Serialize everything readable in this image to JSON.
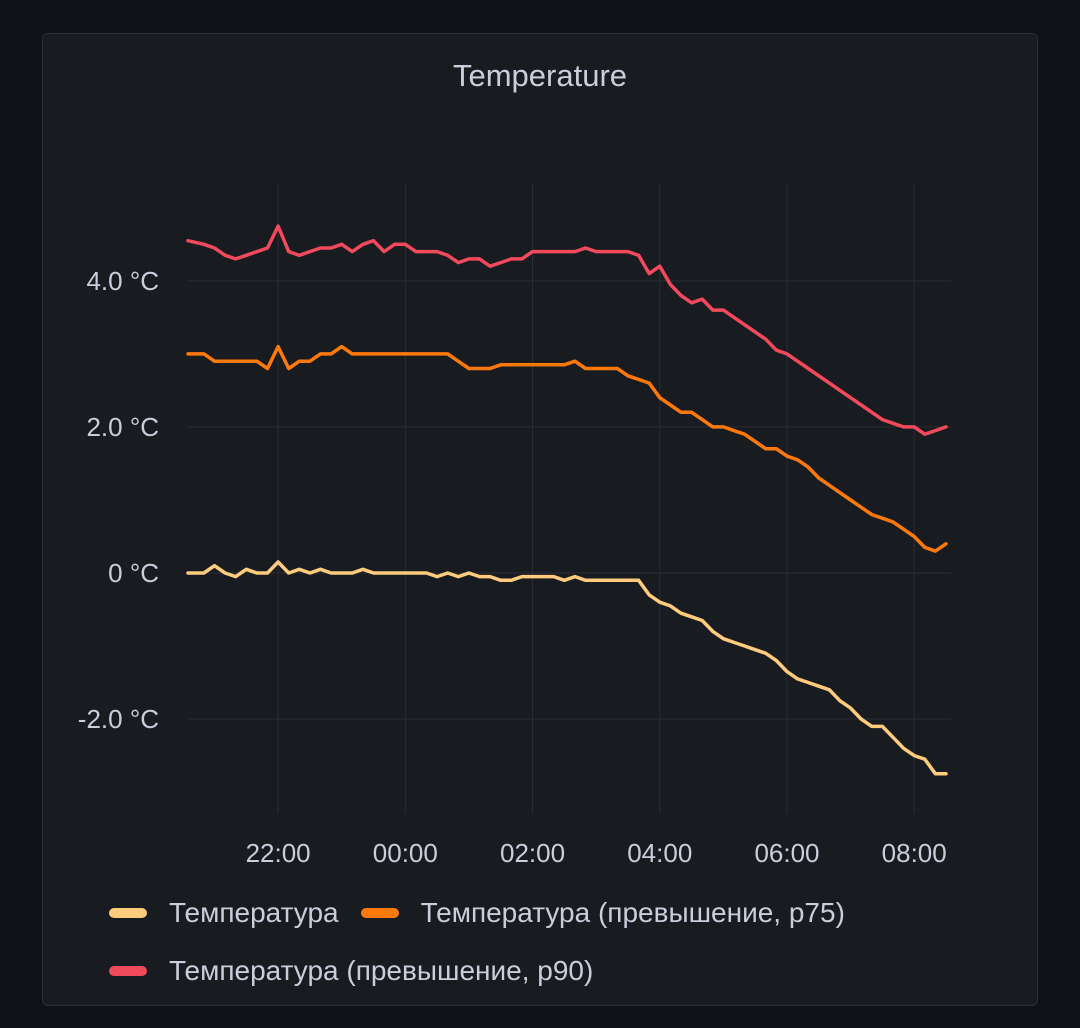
{
  "panel": {
    "title": "Temperature"
  },
  "chart_data": {
    "type": "line",
    "title": "Temperature",
    "xlabel": "",
    "ylabel": "",
    "x_unit": "time (hours, local)",
    "x_ticks": [
      "22:00",
      "00:00",
      "02:00",
      "04:00",
      "06:00",
      "08:00"
    ],
    "x_range": [
      "20:35",
      "08:30"
    ],
    "y_ticks": [
      "-2.0 °C",
      "0 °C",
      "2.0 °C",
      "4.0 °C"
    ],
    "y_tick_values": [
      -2,
      0,
      2,
      4
    ],
    "ylim": [
      -3.3,
      5.6
    ],
    "grid": true,
    "legend_position": "bottom-left",
    "x": [
      "20:35",
      "20:50",
      "21:00",
      "21:10",
      "21:20",
      "21:30",
      "21:40",
      "21:50",
      "22:00",
      "22:10",
      "22:20",
      "22:30",
      "22:40",
      "22:50",
      "23:00",
      "23:10",
      "23:20",
      "23:30",
      "23:40",
      "23:50",
      "00:00",
      "00:10",
      "00:20",
      "00:30",
      "00:40",
      "00:50",
      "01:00",
      "01:10",
      "01:20",
      "01:30",
      "01:40",
      "01:50",
      "02:00",
      "02:10",
      "02:20",
      "02:30",
      "02:40",
      "02:50",
      "03:00",
      "03:10",
      "03:20",
      "03:30",
      "03:40",
      "03:50",
      "04:00",
      "04:10",
      "04:20",
      "04:30",
      "04:40",
      "04:50",
      "05:00",
      "05:10",
      "05:20",
      "05:30",
      "05:40",
      "05:50",
      "06:00",
      "06:10",
      "06:20",
      "06:30",
      "06:40",
      "06:50",
      "07:00",
      "07:10",
      "07:20",
      "07:30",
      "07:40",
      "07:50",
      "08:00",
      "08:10",
      "08:20",
      "08:30"
    ],
    "series": [
      {
        "name": "Температура",
        "color": "#ffcb7d",
        "values": [
          0.0,
          0.0,
          0.1,
          0.0,
          -0.05,
          0.05,
          0.0,
          0.0,
          0.15,
          0.0,
          0.05,
          0.0,
          0.05,
          0.0,
          0.0,
          0.0,
          0.05,
          0.0,
          0.0,
          0.0,
          0.0,
          0.0,
          0.0,
          -0.05,
          0.0,
          -0.05,
          0.0,
          -0.05,
          -0.05,
          -0.1,
          -0.1,
          -0.05,
          -0.05,
          -0.05,
          -0.05,
          -0.1,
          -0.05,
          -0.1,
          -0.1,
          -0.1,
          -0.1,
          -0.1,
          -0.1,
          -0.3,
          -0.4,
          -0.45,
          -0.55,
          -0.6,
          -0.65,
          -0.8,
          -0.9,
          -0.95,
          -1.0,
          -1.05,
          -1.1,
          -1.2,
          -1.35,
          -1.45,
          -1.5,
          -1.55,
          -1.6,
          -1.75,
          -1.85,
          -2.0,
          -2.1,
          -2.1,
          -2.25,
          -2.4,
          -2.5,
          -2.55,
          -2.75,
          -2.75
        ]
      },
      {
        "name": "Температура (превышение, p75)",
        "color": "#ff780a",
        "values": [
          3.0,
          3.0,
          2.9,
          2.9,
          2.9,
          2.9,
          2.9,
          2.8,
          3.1,
          2.8,
          2.9,
          2.9,
          3.0,
          3.0,
          3.1,
          3.0,
          3.0,
          3.0,
          3.0,
          3.0,
          3.0,
          3.0,
          3.0,
          3.0,
          3.0,
          2.9,
          2.8,
          2.8,
          2.8,
          2.85,
          2.85,
          2.85,
          2.85,
          2.85,
          2.85,
          2.85,
          2.9,
          2.8,
          2.8,
          2.8,
          2.8,
          2.7,
          2.65,
          2.6,
          2.4,
          2.3,
          2.2,
          2.2,
          2.1,
          2.0,
          2.0,
          1.95,
          1.9,
          1.8,
          1.7,
          1.7,
          1.6,
          1.55,
          1.45,
          1.3,
          1.2,
          1.1,
          1.0,
          0.9,
          0.8,
          0.75,
          0.7,
          0.6,
          0.5,
          0.35,
          0.3,
          0.4
        ]
      },
      {
        "name": "Температура (превышение, p90)",
        "color": "#f2495c",
        "values": [
          4.55,
          4.5,
          4.45,
          4.35,
          4.3,
          4.35,
          4.4,
          4.45,
          4.75,
          4.4,
          4.35,
          4.4,
          4.45,
          4.45,
          4.5,
          4.4,
          4.5,
          4.55,
          4.4,
          4.5,
          4.5,
          4.4,
          4.4,
          4.4,
          4.35,
          4.25,
          4.3,
          4.3,
          4.2,
          4.25,
          4.3,
          4.3,
          4.4,
          4.4,
          4.4,
          4.4,
          4.4,
          4.45,
          4.4,
          4.4,
          4.4,
          4.4,
          4.35,
          4.1,
          4.2,
          3.95,
          3.8,
          3.7,
          3.75,
          3.6,
          3.6,
          3.5,
          3.4,
          3.3,
          3.2,
          3.05,
          3.0,
          2.9,
          2.8,
          2.7,
          2.6,
          2.5,
          2.4,
          2.3,
          2.2,
          2.1,
          2.05,
          2.0,
          2.0,
          1.9,
          1.95,
          2.0
        ]
      }
    ]
  },
  "legend": {
    "items": [
      {
        "label": "Температура",
        "color": "#ffcb7d"
      },
      {
        "label": "Температура (превышение, p75)",
        "color": "#ff780a"
      },
      {
        "label": "Температура (превышение, p90)",
        "color": "#f2495c"
      }
    ]
  }
}
